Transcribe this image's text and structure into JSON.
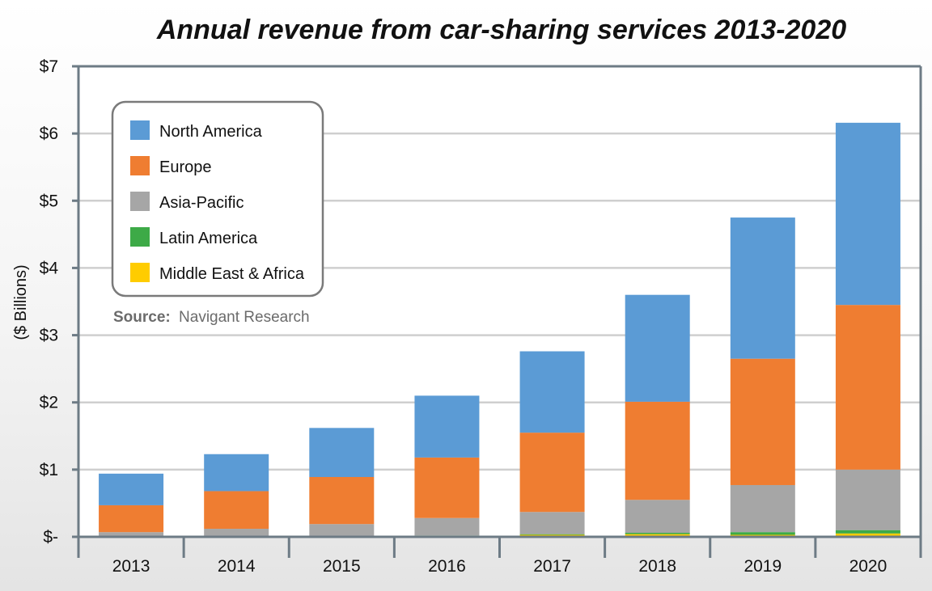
{
  "chart_data": {
    "type": "bar",
    "stacked": true,
    "title": "Annual revenue from car-sharing services 2013-2020",
    "ylabel": "($ Billions)",
    "xlabel": "",
    "ylim": [
      0,
      7
    ],
    "yticks": [
      {
        "value": 0,
        "label": "$-"
      },
      {
        "value": 1,
        "label": "$1"
      },
      {
        "value": 2,
        "label": "$2"
      },
      {
        "value": 3,
        "label": "$3"
      },
      {
        "value": 4,
        "label": "$4"
      },
      {
        "value": 5,
        "label": "$5"
      },
      {
        "value": 6,
        "label": "$6"
      },
      {
        "value": 7,
        "label": "$7"
      }
    ],
    "categories": [
      "2013",
      "2014",
      "2015",
      "2016",
      "2017",
      "2018",
      "2019",
      "2020"
    ],
    "series": [
      {
        "name": "Middle East & Africa",
        "color": "#ffcc00",
        "values": [
          0.0,
          0.0,
          0.0,
          0.01,
          0.03,
          0.04,
          0.03,
          0.05
        ]
      },
      {
        "name": "Latin America",
        "color": "#3daa47",
        "values": [
          0.0,
          0.0,
          0.0,
          0.01,
          0.01,
          0.02,
          0.04,
          0.05
        ]
      },
      {
        "name": "Asia-Pacific",
        "color": "#a6a6a6",
        "values": [
          0.07,
          0.12,
          0.19,
          0.26,
          0.33,
          0.49,
          0.7,
          0.9
        ]
      },
      {
        "name": "Europe",
        "color": "#ef7d31",
        "values": [
          0.4,
          0.56,
          0.7,
          0.9,
          1.18,
          1.46,
          1.88,
          2.45
        ]
      },
      {
        "name": "North America",
        "color": "#5b9bd5",
        "values": [
          0.47,
          0.55,
          0.73,
          0.92,
          1.21,
          1.59,
          2.1,
          2.71
        ]
      }
    ],
    "legend": {
      "position": "top-left",
      "entries": [
        {
          "name": "North America",
          "color": "#5b9bd5"
        },
        {
          "name": "Europe",
          "color": "#ef7d31"
        },
        {
          "name": "Asia-Pacific",
          "color": "#a6a6a6"
        },
        {
          "name": "Latin America",
          "color": "#3daa47"
        },
        {
          "name": "Middle East & Africa",
          "color": "#ffcc00"
        }
      ]
    },
    "grid": true,
    "source_label": "Source:",
    "source_text": "Navigant Research"
  }
}
